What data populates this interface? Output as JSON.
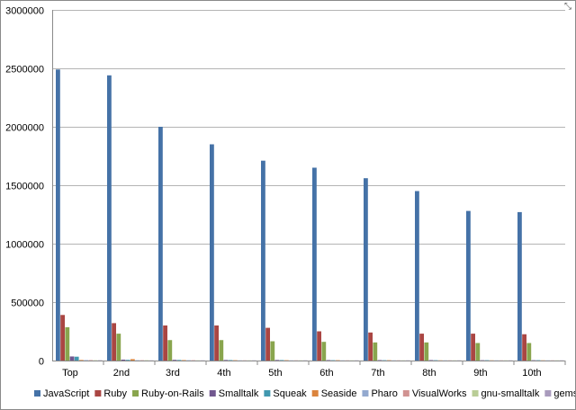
{
  "chart_data": {
    "type": "bar",
    "categories": [
      "Top",
      "2nd",
      "3rd",
      "4th",
      "5th",
      "6th",
      "7th",
      "8th",
      "9th",
      "10th"
    ],
    "ylim": [
      0,
      3000000
    ],
    "yticks": [
      0,
      500000,
      1000000,
      1500000,
      2000000,
      2500000,
      3000000
    ],
    "ytick_labels": [
      "0",
      "500000",
      "1000000",
      "1500000",
      "2000000",
      "2500000",
      "3000000"
    ],
    "grid": true,
    "legend_position": "bottom",
    "series": [
      {
        "name": "JavaScript",
        "color": "#4572A7",
        "values": [
          2490000,
          2440000,
          2000000,
          1850000,
          1710000,
          1650000,
          1560000,
          1450000,
          1280000,
          1270000
        ]
      },
      {
        "name": "Ruby",
        "color": "#AA4643",
        "values": [
          390000,
          320000,
          300000,
          300000,
          280000,
          250000,
          240000,
          230000,
          230000,
          225000
        ]
      },
      {
        "name": "Ruby-on-Rails",
        "color": "#89A54E",
        "values": [
          285000,
          230000,
          175000,
          175000,
          165000,
          160000,
          155000,
          155000,
          150000,
          150000
        ]
      },
      {
        "name": "Smalltalk",
        "color": "#71588F",
        "values": [
          35000,
          8000,
          6000,
          5000,
          5000,
          4000,
          4000,
          4000,
          3000,
          3000
        ]
      },
      {
        "name": "Squeak",
        "color": "#4198AF",
        "values": [
          33000,
          6000,
          5000,
          4000,
          4000,
          3000,
          3000,
          3000,
          3000,
          3000
        ]
      },
      {
        "name": "Seaside",
        "color": "#DB843D",
        "values": [
          5000,
          12000,
          4000,
          3000,
          3000,
          3000,
          3000,
          2000,
          2000,
          2000
        ]
      },
      {
        "name": "Pharo",
        "color": "#93A9CF",
        "values": [
          4000,
          3000,
          3000,
          2000,
          2000,
          2000,
          2000,
          2000,
          2000,
          2000
        ]
      },
      {
        "name": "VisualWorks",
        "color": "#D19392",
        "values": [
          4000,
          3000,
          3000,
          2000,
          2000,
          2000,
          2000,
          2000,
          2000,
          2000
        ]
      },
      {
        "name": "gnu-smalltalk",
        "color": "#B9CD96",
        "values": [
          3000,
          3000,
          2000,
          2000,
          2000,
          2000,
          2000,
          2000,
          2000,
          2000
        ]
      },
      {
        "name": "gemstone",
        "color": "#A99BBD",
        "values": [
          3000,
          2000,
          2000,
          2000,
          2000,
          2000,
          2000,
          2000,
          2000,
          2000
        ]
      }
    ]
  },
  "icons": {
    "resize_handle": "resize-corner-icon",
    "resize_glyph": "⤡"
  }
}
